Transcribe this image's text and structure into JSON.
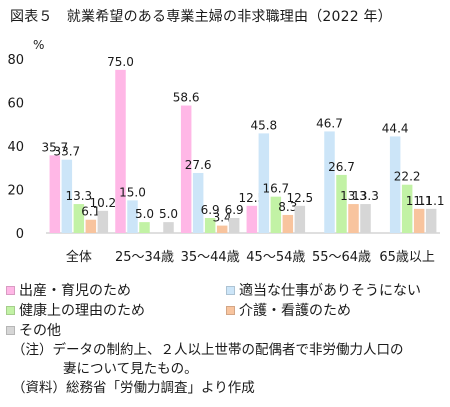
{
  "figure": {
    "title": "図表５　就業希望のある専業主婦の非求職理由（2022 年）",
    "notes": [
      "（注）データの制約上、２人以上世帯の配偶者で非労働力人口の",
      "妻について見たもの。",
      "（資料）総務省「労働力調査」より作成"
    ]
  },
  "colors": {
    "childbirth": "#FFB7E6",
    "no_suitable_job": "#CCE5F8",
    "health": "#C2F2A5",
    "care": "#F8C49E",
    "other": "#D6D6D6"
  },
  "chart_data": {
    "type": "bar",
    "unit_label": "%",
    "ylim": [
      0,
      80
    ],
    "yticks": [
      0,
      20,
      40,
      60,
      80
    ],
    "categories": [
      "全体",
      "25～34歳",
      "35～44歳",
      "45～54歳",
      "55～64歳",
      "65歳以上"
    ],
    "series": [
      {
        "name": "出産・育児のため",
        "key": "childbirth",
        "values": [
          35.7,
          75.0,
          58.6,
          12.5,
          null,
          null
        ]
      },
      {
        "name": "適当な仕事がありそうにない",
        "key": "no_suitable_job",
        "values": [
          33.7,
          15.0,
          27.6,
          45.8,
          46.7,
          44.4
        ]
      },
      {
        "name": "健康上の理由のため",
        "key": "health",
        "values": [
          13.3,
          5.0,
          6.9,
          16.7,
          26.7,
          22.2
        ]
      },
      {
        "name": "介護・看護のため",
        "key": "care",
        "values": [
          6.1,
          null,
          3.4,
          8.3,
          13.3,
          11.1
        ]
      },
      {
        "name": "その他",
        "key": "other",
        "values": [
          10.2,
          5.0,
          6.9,
          12.5,
          13.3,
          11.1
        ]
      }
    ],
    "data_labels": [
      [
        "35.7",
        "33.7",
        "13.3",
        "6.1",
        "10.2"
      ],
      [
        "75.0",
        "15.0",
        "5.0",
        "",
        "5.0"
      ],
      [
        "58.6",
        "27.6",
        "6.9",
        "3.4",
        "6.9"
      ],
      [
        "12.5",
        "45.8",
        "16.7",
        "8.3",
        "12.5"
      ],
      [
        "",
        "46.7",
        "26.7",
        "13.3",
        "13.3"
      ],
      [
        "",
        "44.4",
        "22.2",
        "11.1",
        "11.1"
      ]
    ],
    "legend_position": "bottom",
    "grid": false
  }
}
